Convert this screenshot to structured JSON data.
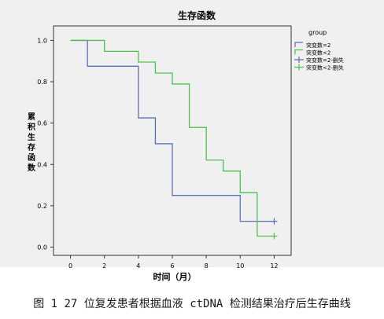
{
  "chart_data": {
    "type": "line",
    "step": true,
    "title": "生存函数",
    "xlabel": "时间（月）",
    "ylabel": "累积生存函数",
    "xlim": [
      -1,
      13
    ],
    "ylim": [
      -0.04,
      1.07
    ],
    "xticks": [
      "0",
      "2",
      "4",
      "6",
      "8",
      "10",
      "12"
    ],
    "yticks": [
      "0.0",
      "0.2",
      "0.4",
      "0.6",
      "0.8",
      "1.0"
    ],
    "grid": false,
    "legend_title": "group",
    "legend_position": "right",
    "series": [
      {
        "name": "突变数=2",
        "color": "#5b6fb8",
        "steps": [
          [
            0,
            1.0
          ],
          [
            1,
            0.875
          ],
          [
            4,
            0.625
          ],
          [
            5,
            0.5
          ],
          [
            6,
            0.25
          ],
          [
            10,
            0.125
          ],
          [
            12,
            0.125
          ]
        ],
        "censored": [
          [
            12,
            0.125
          ]
        ]
      },
      {
        "name": "突变数<2",
        "color": "#4fc14f",
        "steps": [
          [
            0,
            1.0
          ],
          [
            2,
            0.947
          ],
          [
            4,
            0.895
          ],
          [
            5,
            0.842
          ],
          [
            6,
            0.789
          ],
          [
            7,
            0.579
          ],
          [
            8,
            0.421
          ],
          [
            9,
            0.368
          ],
          [
            10,
            0.263
          ],
          [
            11,
            0.053
          ],
          [
            12,
            0.053
          ]
        ],
        "censored": [
          [
            12,
            0.053
          ]
        ]
      }
    ],
    "legend": [
      {
        "label": "突变数=2",
        "marker": "line",
        "series": 0
      },
      {
        "label": "突变数<2",
        "marker": "line",
        "series": 1
      },
      {
        "label": "突变数=2-删失",
        "marker": "plus",
        "series": 0
      },
      {
        "label": "突变数<2-删失",
        "marker": "plus",
        "series": 1
      }
    ]
  },
  "caption": "图 1 27 位复发患者根据血液 ctDNA 检测结果治疗后生存曲线"
}
